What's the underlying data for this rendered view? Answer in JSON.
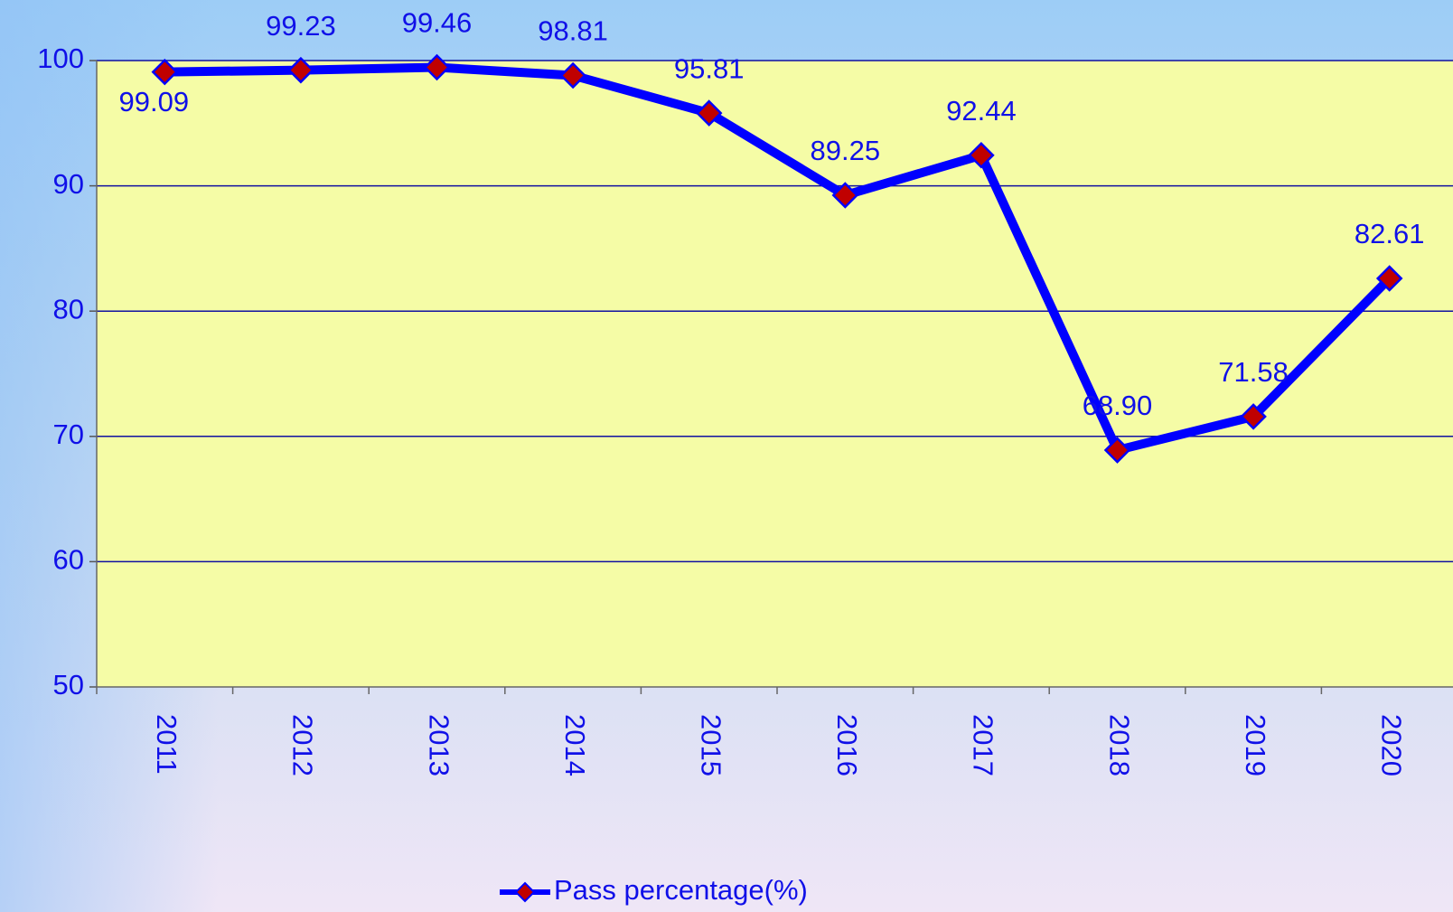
{
  "chart_data": {
    "type": "line",
    "categories": [
      "2011",
      "2012",
      "2013",
      "2014",
      "2015",
      "2016",
      "2017",
      "2018",
      "2019",
      "2020"
    ],
    "series": [
      {
        "name": "Pass percentage(%)",
        "color": "#0000ff",
        "marker_color": "#c00000",
        "values": [
          99.09,
          99.23,
          99.46,
          98.81,
          95.81,
          89.25,
          92.44,
          68.9,
          71.58,
          82.61
        ],
        "value_labels": [
          "99.09",
          "99.23",
          "99.46",
          "98.81",
          "95.81",
          "89.25",
          "92.44",
          "68.90",
          "71.58",
          "82.61"
        ]
      }
    ],
    "ylim": [
      50,
      100
    ],
    "yticks": [
      50,
      60,
      70,
      80,
      90,
      100
    ],
    "grid": true,
    "legend": "bottom"
  }
}
